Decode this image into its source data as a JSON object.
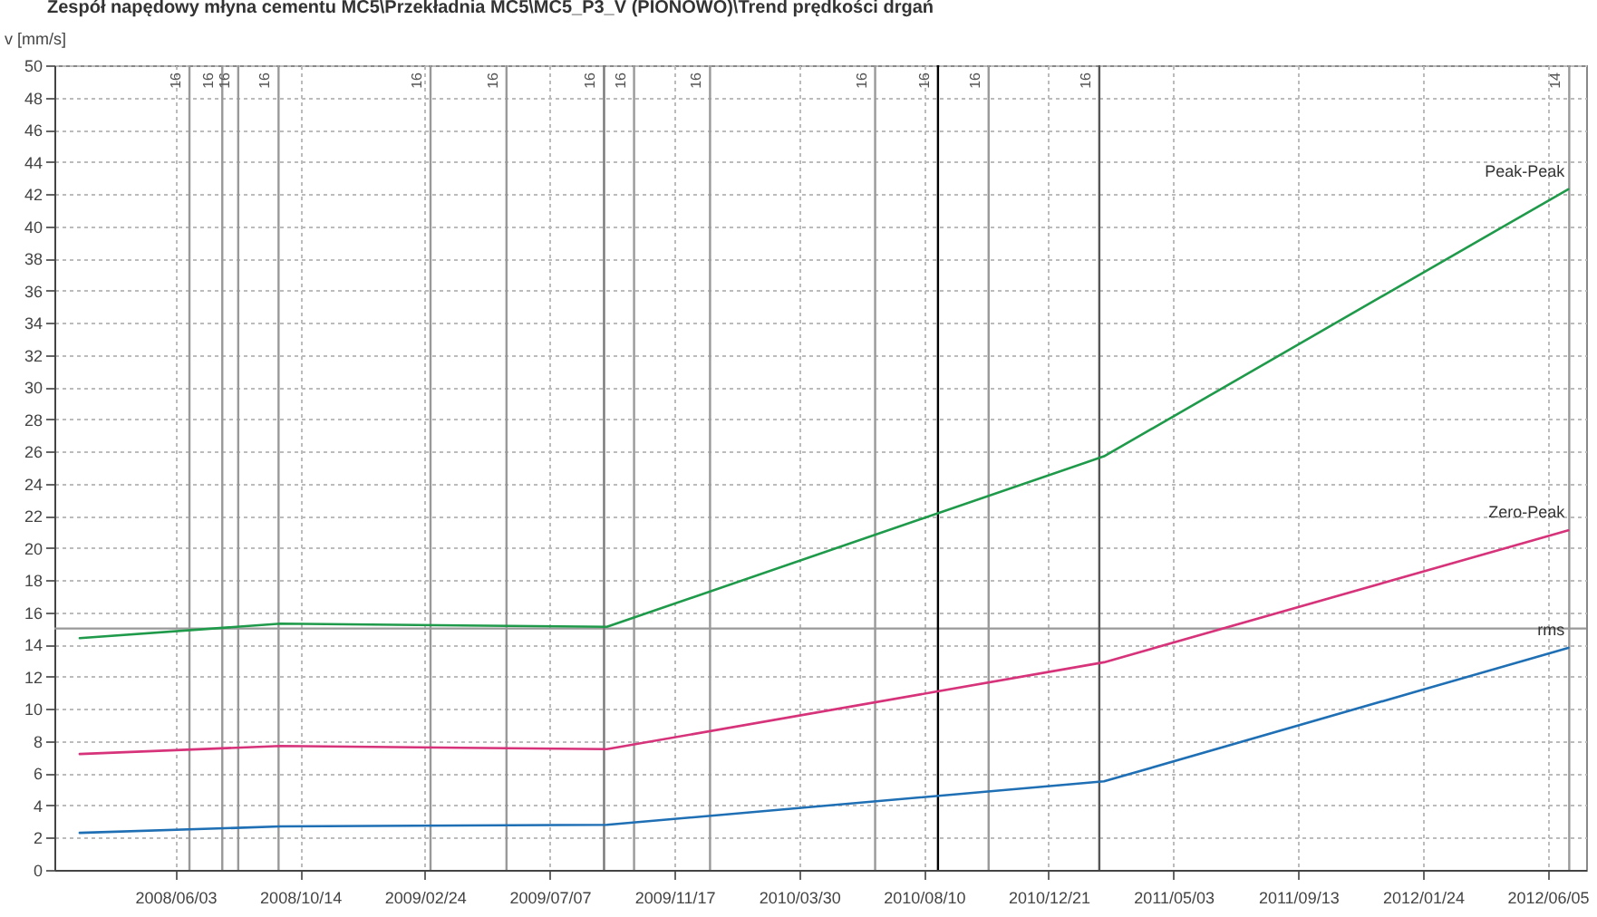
{
  "chart_data": {
    "type": "line",
    "title": "Zespół napędowy młyna cementu MC5\\Przekładnia MC5\\MC5_P3_V (PIONOWO)\\Trend prędkości drgań",
    "ylabel": "v [mm/s]",
    "x": [
      "2008-02-22",
      "2008-09-23",
      "2009-09-06",
      "2011-02-18",
      "2012-06-27"
    ],
    "series": [
      {
        "name": "Peak-Peak",
        "color": "#1f9a4a",
        "values": [
          14.4,
          15.3,
          15.1,
          25.7,
          42.3
        ]
      },
      {
        "name": "Zero-Peak",
        "color": "#d6337a",
        "values": [
          7.2,
          7.7,
          7.5,
          12.9,
          21.1
        ]
      },
      {
        "name": "rms",
        "color": "#1f6fb5",
        "values": [
          2.3,
          2.7,
          2.8,
          5.5,
          13.8
        ]
      }
    ],
    "xlim": [
      "2008-01-26",
      "2012-07-16"
    ],
    "xticks": [
      {
        "value": "2008-06-03",
        "label": "2008/06/03"
      },
      {
        "value": "2008-10-14",
        "label": "2008/10/14"
      },
      {
        "value": "2009-02-24",
        "label": "2009/02/24"
      },
      {
        "value": "2009-07-07",
        "label": "2009/07/07"
      },
      {
        "value": "2009-11-17",
        "label": "2009/11/17"
      },
      {
        "value": "2010-03-30",
        "label": "2010/03/30"
      },
      {
        "value": "2010-08-10",
        "label": "2010/08/10"
      },
      {
        "value": "2010-12-21",
        "label": "2010/12/21"
      },
      {
        "value": "2011-05-03",
        "label": "2011/05/03"
      },
      {
        "value": "2011-09-13",
        "label": "2011/09/13"
      },
      {
        "value": "2012-01-24",
        "label": "2012/01/24"
      },
      {
        "value": "2012-06-05",
        "label": "2012/06/05"
      }
    ],
    "ylim": [
      0,
      50
    ],
    "yticks": [
      0,
      2,
      4,
      6,
      8,
      10,
      12,
      14,
      16,
      18,
      20,
      22,
      24,
      26,
      28,
      30,
      32,
      34,
      36,
      38,
      40,
      42,
      44,
      46,
      48,
      50
    ],
    "grid": true,
    "ref_lines": [
      {
        "axis": "y",
        "value": 15,
        "color": "#999999"
      },
      {
        "axis": "x",
        "value": "2008-06-18",
        "label": "16",
        "color": "#999999"
      },
      {
        "axis": "x",
        "value": "2008-07-23",
        "label": "16",
        "color": "#999999"
      },
      {
        "axis": "x",
        "value": "2008-08-09",
        "label": "16",
        "color": "#999999"
      },
      {
        "axis": "x",
        "value": "2008-09-21",
        "label": "16",
        "color": "#999999"
      },
      {
        "axis": "x",
        "value": "2009-03-02",
        "label": "16",
        "color": "#999999"
      },
      {
        "axis": "x",
        "value": "2009-05-22",
        "label": "16",
        "color": "#999999"
      },
      {
        "axis": "x",
        "value": "2009-09-03",
        "label": "16",
        "color": "#777777"
      },
      {
        "axis": "x",
        "value": "2009-10-05",
        "label": "16",
        "color": "#999999"
      },
      {
        "axis": "x",
        "value": "2009-12-25",
        "label": "16",
        "color": "#999999"
      },
      {
        "axis": "x",
        "value": "2010-06-19",
        "label": "16",
        "color": "#999999"
      },
      {
        "axis": "x",
        "value": "2010-08-25",
        "label": "16",
        "color": "#000000"
      },
      {
        "axis": "x",
        "value": "2010-10-18",
        "label": "16",
        "color": "#999999"
      },
      {
        "axis": "x",
        "value": "2011-02-13",
        "label": "16",
        "color": "#555555"
      },
      {
        "axis": "x",
        "value": "2012-06-28",
        "label": "14",
        "color": "#999999"
      }
    ]
  }
}
